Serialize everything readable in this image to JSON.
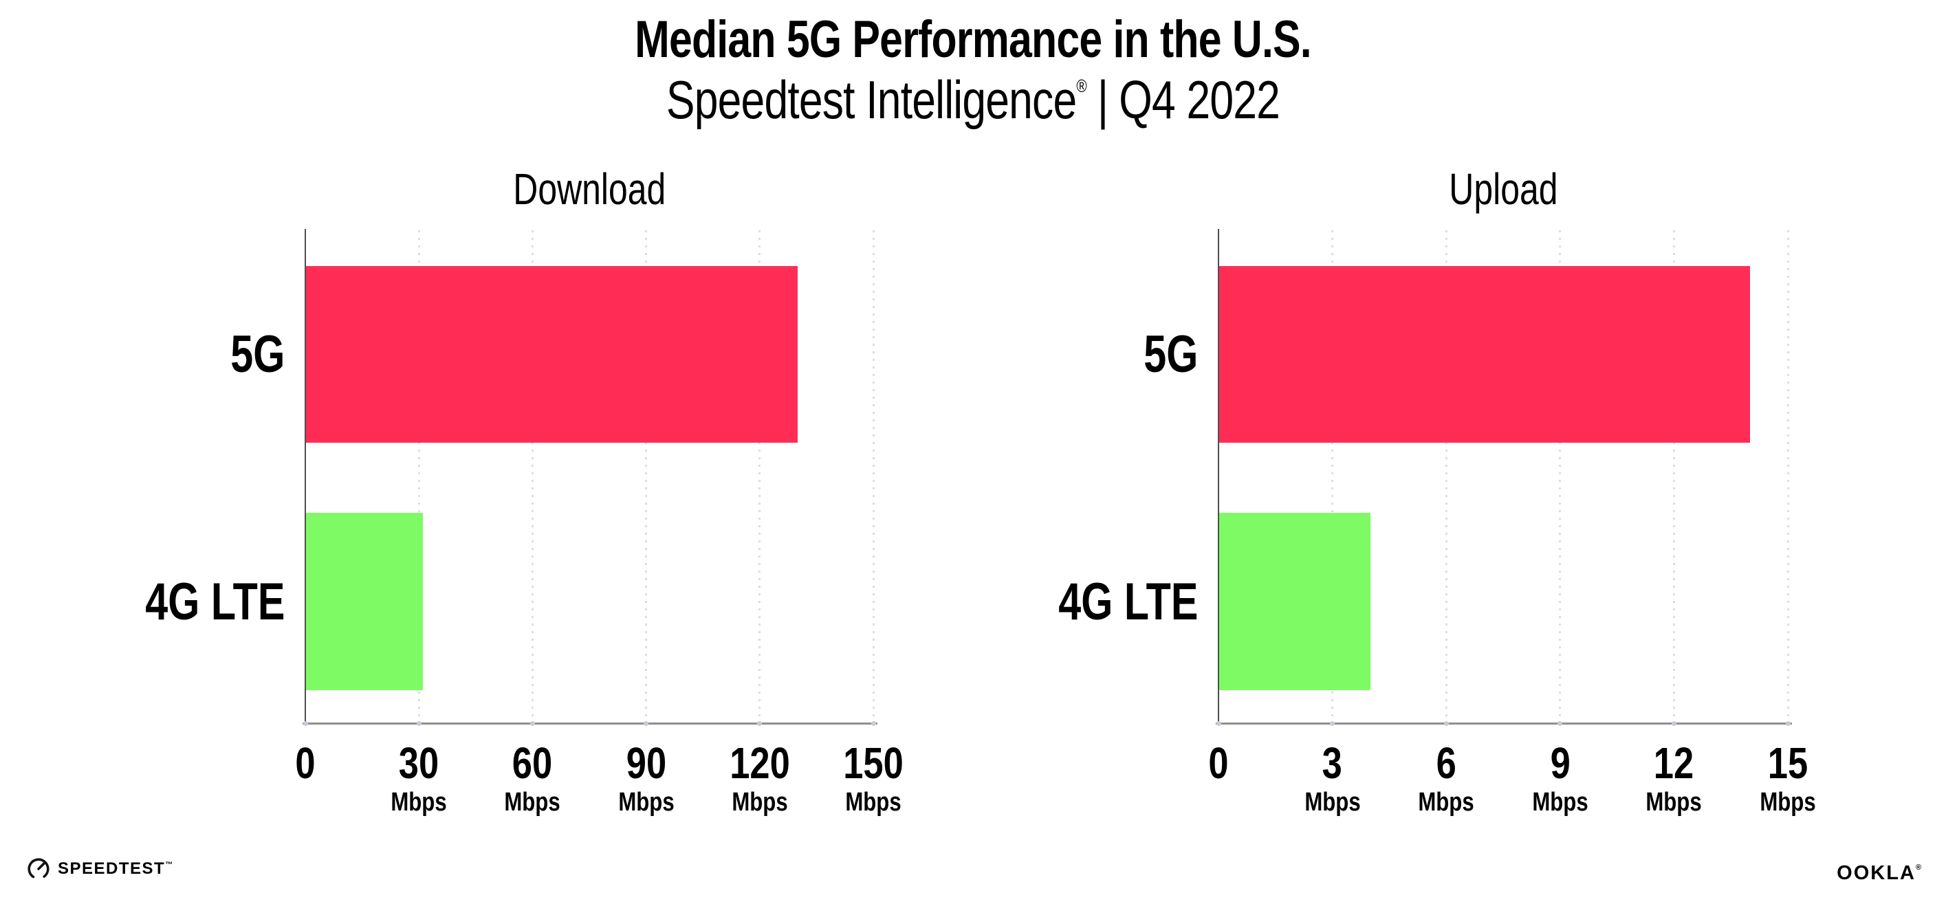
{
  "header": {
    "title": "Median 5G Performance in the U.S.",
    "subtitle_brand": "Speedtest Intelligence",
    "subtitle_reg": "®",
    "subtitle_sep": "|",
    "subtitle_period": "Q4 2022"
  },
  "chart_data": [
    {
      "type": "bar",
      "orientation": "horizontal",
      "title": "Download",
      "categories": [
        "5G",
        "4G LTE"
      ],
      "values": [
        130,
        31
      ],
      "unit": "Mbps",
      "xlim": [
        0,
        150
      ],
      "ticks": [
        0,
        30,
        60,
        90,
        120,
        150
      ],
      "bar_colors": [
        "#FF2D56",
        "#7EFB64"
      ],
      "grid": "dotted-vertical-gridlines",
      "legend": "none"
    },
    {
      "type": "bar",
      "orientation": "horizontal",
      "title": "Upload",
      "categories": [
        "5G",
        "4G LTE"
      ],
      "values": [
        14,
        4
      ],
      "unit": "Mbps",
      "xlim": [
        0,
        15
      ],
      "ticks": [
        0,
        3,
        6,
        9,
        12,
        15
      ],
      "bar_colors": [
        "#FF2D56",
        "#7EFB64"
      ],
      "grid": "dotted-vertical-gridlines",
      "legend": "none"
    }
  ],
  "footer": {
    "speedtest_label": "SPEEDTEST",
    "speedtest_tm": "™",
    "ookla_label": "OOKLA",
    "ookla_reg": "®"
  },
  "colors": {
    "bar_5g": "#FF2D56",
    "bar_4g_lte": "#7EFB64",
    "x_axis_line": "#8F8F8F",
    "y_axis_line": "#4E4E4E",
    "gridline_dots": "#DCDCE8",
    "tick_dots": "#CACAD6",
    "text": "#000000",
    "background": "#FFFFFF"
  }
}
